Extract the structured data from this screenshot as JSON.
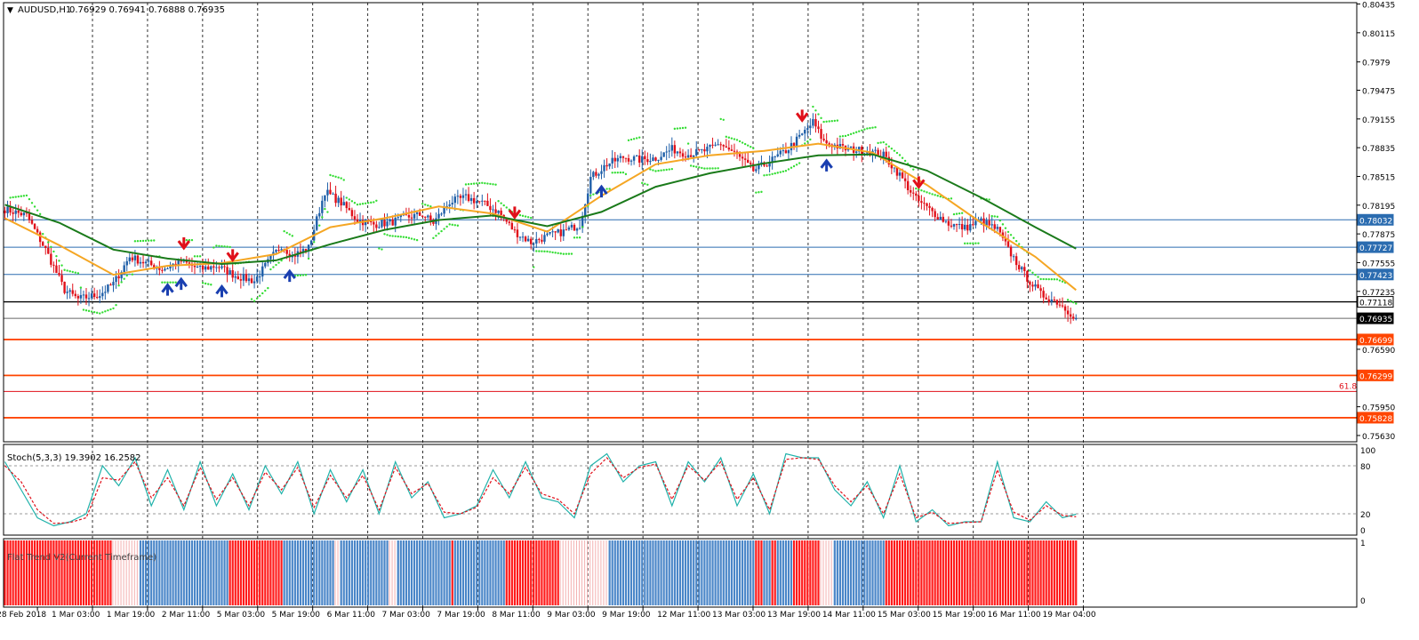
{
  "header": {
    "symbol_label": "AUDUSD,H1",
    "ohlc_label": "0.76929 0.76941 0.76888 0.76935"
  },
  "colors": {
    "background": "#ffffff",
    "grid": "#000000",
    "candle_up": "#1f5fa8",
    "candle_down": "#e0101a",
    "ma_fast": "#f5a623",
    "ma_slow": "#1a7a1a",
    "sar": "#33dd33",
    "level_blue": "#2b6cb0",
    "level_orange": "#ff4500",
    "level_black": "#000000",
    "stoch_main": "#20b2aa",
    "stoch_signal": "#e0101a",
    "flat_red": "#ff1a1a",
    "flat_blue": "#4a86c8"
  },
  "chart_data": [
    {
      "type": "candlestick",
      "title": "AUDUSD,H1",
      "ohlc_last": {
        "open": 0.76929,
        "high": 0.76941,
        "low": 0.76888,
        "close": 0.76935
      },
      "ylim": [
        0.7556,
        0.8045
      ],
      "y_ticks": [
        "0.80435",
        "0.80115",
        "0.7979",
        "0.79475",
        "0.79155",
        "0.78835",
        "0.78515",
        "0.78195",
        "0.77875",
        "0.77555",
        "0.77235",
        "0.76590",
        "0.75950",
        "0.75630"
      ],
      "x_ticks": [
        "28 Feb 2018",
        "1 Mar 03:00",
        "1 Mar 19:00",
        "2 Mar 11:00",
        "5 Mar 03:00",
        "5 Mar 19:00",
        "6 Mar 11:00",
        "7 Mar 03:00",
        "7 Mar 19:00",
        "8 Mar 11:00",
        "9 Mar 03:00",
        "9 Mar 19:00",
        "12 Mar 11:00",
        "13 Mar 03:00",
        "13 Mar 19:00",
        "14 Mar 11:00",
        "15 Mar 03:00",
        "15 Mar 19:00",
        "16 Mar 11:00",
        "19 Mar 04:00"
      ],
      "path_points": [
        [
          0,
          0.7815
        ],
        [
          8,
          0.7808
        ],
        [
          15,
          0.777
        ],
        [
          22,
          0.7725
        ],
        [
          27,
          0.7715
        ],
        [
          35,
          0.772
        ],
        [
          40,
          0.7732
        ],
        [
          46,
          0.7762
        ],
        [
          52,
          0.7755
        ],
        [
          58,
          0.7748
        ],
        [
          65,
          0.7757
        ],
        [
          72,
          0.7748
        ],
        [
          78,
          0.7752
        ],
        [
          85,
          0.7741
        ],
        [
          92,
          0.7735
        ],
        [
          98,
          0.776
        ],
        [
          102,
          0.7775
        ],
        [
          106,
          0.7763
        ],
        [
          112,
          0.7772
        ],
        [
          118,
          0.7835
        ],
        [
          124,
          0.7822
        ],
        [
          130,
          0.7803
        ],
        [
          136,
          0.7798
        ],
        [
          142,
          0.78
        ],
        [
          148,
          0.7806
        ],
        [
          154,
          0.7809
        ],
        [
          158,
          0.78
        ],
        [
          164,
          0.7823
        ],
        [
          170,
          0.7828
        ],
        [
          176,
          0.7822
        ],
        [
          182,
          0.7812
        ],
        [
          188,
          0.779
        ],
        [
          194,
          0.7778
        ],
        [
          200,
          0.7785
        ],
        [
          206,
          0.779
        ],
        [
          212,
          0.7798
        ],
        [
          216,
          0.785
        ],
        [
          222,
          0.7865
        ],
        [
          228,
          0.7873
        ],
        [
          234,
          0.787
        ],
        [
          240,
          0.7872
        ],
        [
          246,
          0.7882
        ],
        [
          252,
          0.7876
        ],
        [
          258,
          0.788
        ],
        [
          264,
          0.7888
        ],
        [
          270,
          0.7875
        ],
        [
          276,
          0.7858
        ],
        [
          282,
          0.7868
        ],
        [
          288,
          0.788
        ],
        [
          294,
          0.7898
        ],
        [
          298,
          0.7912
        ],
        [
          302,
          0.789
        ],
        [
          310,
          0.7882
        ],
        [
          318,
          0.788
        ],
        [
          324,
          0.7875
        ],
        [
          330,
          0.7853
        ],
        [
          336,
          0.7826
        ],
        [
          342,
          0.7812
        ],
        [
          348,
          0.7799
        ],
        [
          354,
          0.7794
        ],
        [
          360,
          0.7802
        ],
        [
          366,
          0.7792
        ],
        [
          370,
          0.777
        ],
        [
          376,
          0.7742
        ],
        [
          382,
          0.772
        ],
        [
          388,
          0.7712
        ],
        [
          392,
          0.7702
        ],
        [
          395,
          0.7694
        ]
      ],
      "series": [
        {
          "name": "",
          "kind": "moving_average_fast",
          "x": [
            0,
            20,
            40,
            60,
            80,
            100,
            120,
            140,
            160,
            180,
            200,
            220,
            240,
            260,
            280,
            300,
            320,
            340,
            360,
            380,
            395
          ],
          "values": [
            0.7805,
            0.7775,
            0.7742,
            0.7752,
            0.7755,
            0.7765,
            0.7795,
            0.7805,
            0.7818,
            0.781,
            0.779,
            0.783,
            0.7865,
            0.7875,
            0.788,
            0.7888,
            0.7878,
            0.7842,
            0.78,
            0.7762,
            0.7725
          ]
        },
        {
          "name": "",
          "kind": "moving_average_slow",
          "x": [
            0,
            20,
            40,
            60,
            80,
            100,
            120,
            140,
            160,
            180,
            200,
            220,
            240,
            260,
            280,
            300,
            320,
            340,
            360,
            380,
            395
          ],
          "values": [
            0.782,
            0.78,
            0.777,
            0.776,
            0.7754,
            0.7758,
            0.7776,
            0.7792,
            0.7803,
            0.7808,
            0.7796,
            0.7812,
            0.784,
            0.7855,
            0.7866,
            0.7875,
            0.7876,
            0.7858,
            0.7828,
            0.7795,
            0.7771
          ]
        }
      ],
      "horizontal_levels": [
        {
          "value": 0.78032,
          "label": "0.78032",
          "color": "#2b6cb0",
          "style": "blue"
        },
        {
          "value": 0.77727,
          "label": "0.77727",
          "color": "#2b6cb0",
          "style": "blue"
        },
        {
          "value": 0.77423,
          "label": "0.77423",
          "color": "#2b6cb0",
          "style": "blue"
        },
        {
          "value": 0.77118,
          "label": "0.77118",
          "color": "#000000",
          "style": "black"
        },
        {
          "value": 0.76935,
          "label": "0.76935",
          "color": "#000000",
          "style": "current"
        },
        {
          "value": 0.76699,
          "label": "0.76699",
          "color": "#ff4500",
          "style": "orange"
        },
        {
          "value": 0.76299,
          "label": "0.76299",
          "color": "#ff4500",
          "style": "orange"
        },
        {
          "value": 0.7612,
          "label": "61.8",
          "color": "#e0101a",
          "style": "fib"
        },
        {
          "value": 0.75828,
          "label": "0.75828",
          "color": "#ff4500",
          "style": "orange"
        }
      ],
      "signals": [
        {
          "x": 60,
          "kind": "up"
        },
        {
          "x": 65,
          "kind": "up"
        },
        {
          "x": 80,
          "kind": "up"
        },
        {
          "x": 105,
          "kind": "up"
        },
        {
          "x": 220,
          "kind": "up"
        },
        {
          "x": 303,
          "kind": "up"
        },
        {
          "x": 66,
          "kind": "down"
        },
        {
          "x": 84,
          "kind": "down"
        },
        {
          "x": 188,
          "kind": "down"
        },
        {
          "x": 294,
          "kind": "down"
        },
        {
          "x": 337,
          "kind": "down"
        }
      ]
    },
    {
      "type": "line",
      "title": "Stoch(5,3,3) 19.3902 16.2582",
      "ylim": [
        0,
        100
      ],
      "y_ticks": [
        "100",
        "80",
        "20",
        "0"
      ],
      "reference_levels": [
        80,
        20
      ],
      "series": [
        {
          "name": "",
          "kind": "main",
          "x": [
            0,
            6,
            12,
            18,
            24,
            30,
            36,
            42,
            48,
            54,
            60,
            66,
            72,
            78,
            84,
            90,
            96,
            102,
            108,
            114,
            120,
            126,
            132,
            138,
            144,
            150,
            156,
            162,
            168,
            174,
            180,
            186,
            192,
            198,
            204,
            210,
            216,
            222,
            228,
            234,
            240,
            246,
            252,
            258,
            264,
            270,
            276,
            282,
            288,
            294,
            300,
            306,
            312,
            318,
            324,
            330,
            336,
            342,
            348,
            354,
            360,
            366,
            372,
            378,
            384,
            390,
            395
          ],
          "values": [
            85,
            50,
            15,
            5,
            10,
            20,
            80,
            55,
            90,
            30,
            75,
            25,
            85,
            30,
            70,
            25,
            80,
            45,
            85,
            20,
            75,
            35,
            75,
            20,
            85,
            40,
            60,
            15,
            20,
            30,
            75,
            40,
            85,
            40,
            35,
            15,
            80,
            95,
            60,
            80,
            85,
            30,
            85,
            60,
            90,
            30,
            70,
            20,
            95,
            90,
            90,
            50,
            30,
            60,
            15,
            80,
            10,
            25,
            5,
            10,
            10,
            85,
            15,
            10,
            35,
            15,
            19.3902
          ]
        },
        {
          "name": "",
          "kind": "signal",
          "x": [
            0,
            6,
            12,
            18,
            24,
            30,
            36,
            42,
            48,
            54,
            60,
            66,
            72,
            78,
            84,
            90,
            96,
            102,
            108,
            114,
            120,
            126,
            132,
            138,
            144,
            150,
            156,
            162,
            168,
            174,
            180,
            186,
            192,
            198,
            204,
            210,
            216,
            222,
            228,
            234,
            240,
            246,
            252,
            258,
            264,
            270,
            276,
            282,
            288,
            294,
            300,
            306,
            312,
            318,
            324,
            330,
            336,
            342,
            348,
            354,
            360,
            366,
            372,
            378,
            384,
            390,
            395
          ],
          "values": [
            80,
            60,
            25,
            8,
            9,
            15,
            65,
            62,
            85,
            40,
            65,
            30,
            78,
            38,
            65,
            30,
            72,
            50,
            78,
            28,
            68,
            40,
            68,
            25,
            78,
            45,
            58,
            22,
            20,
            28,
            65,
            45,
            78,
            45,
            38,
            20,
            70,
            90,
            65,
            78,
            82,
            38,
            80,
            62,
            85,
            38,
            65,
            25,
            88,
            90,
            88,
            55,
            35,
            55,
            20,
            70,
            15,
            22,
            8,
            9,
            10,
            75,
            22,
            12,
            30,
            18,
            16.2582
          ]
        }
      ]
    },
    {
      "type": "bar",
      "title": "Flat Trend V2(Current Timeframe)",
      "ylim": [
        0,
        1
      ],
      "y_ticks": [
        "1",
        "0"
      ],
      "segments": [
        {
          "from": 0,
          "to": 40,
          "state": "red"
        },
        {
          "from": 40,
          "to": 50,
          "state": "light"
        },
        {
          "from": 50,
          "to": 83,
          "state": "blue"
        },
        {
          "from": 83,
          "to": 103,
          "state": "red"
        },
        {
          "from": 103,
          "to": 122,
          "state": "blue"
        },
        {
          "from": 122,
          "to": 124,
          "state": "light"
        },
        {
          "from": 124,
          "to": 142,
          "state": "blue"
        },
        {
          "from": 142,
          "to": 145,
          "state": "light"
        },
        {
          "from": 145,
          "to": 165,
          "state": "blue"
        },
        {
          "from": 165,
          "to": 166,
          "state": "red"
        },
        {
          "from": 166,
          "to": 185,
          "state": "blue"
        },
        {
          "from": 185,
          "to": 205,
          "state": "red"
        },
        {
          "from": 205,
          "to": 223,
          "state": "light"
        },
        {
          "from": 223,
          "to": 277,
          "state": "blue"
        },
        {
          "from": 277,
          "to": 280,
          "state": "red"
        },
        {
          "from": 280,
          "to": 283,
          "state": "blue"
        },
        {
          "from": 283,
          "to": 285,
          "state": "red"
        },
        {
          "from": 285,
          "to": 291,
          "state": "blue"
        },
        {
          "from": 291,
          "to": 301,
          "state": "red"
        },
        {
          "from": 301,
          "to": 306,
          "state": "light"
        },
        {
          "from": 306,
          "to": 325,
          "state": "blue"
        },
        {
          "from": 325,
          "to": 396,
          "state": "red"
        }
      ]
    }
  ]
}
